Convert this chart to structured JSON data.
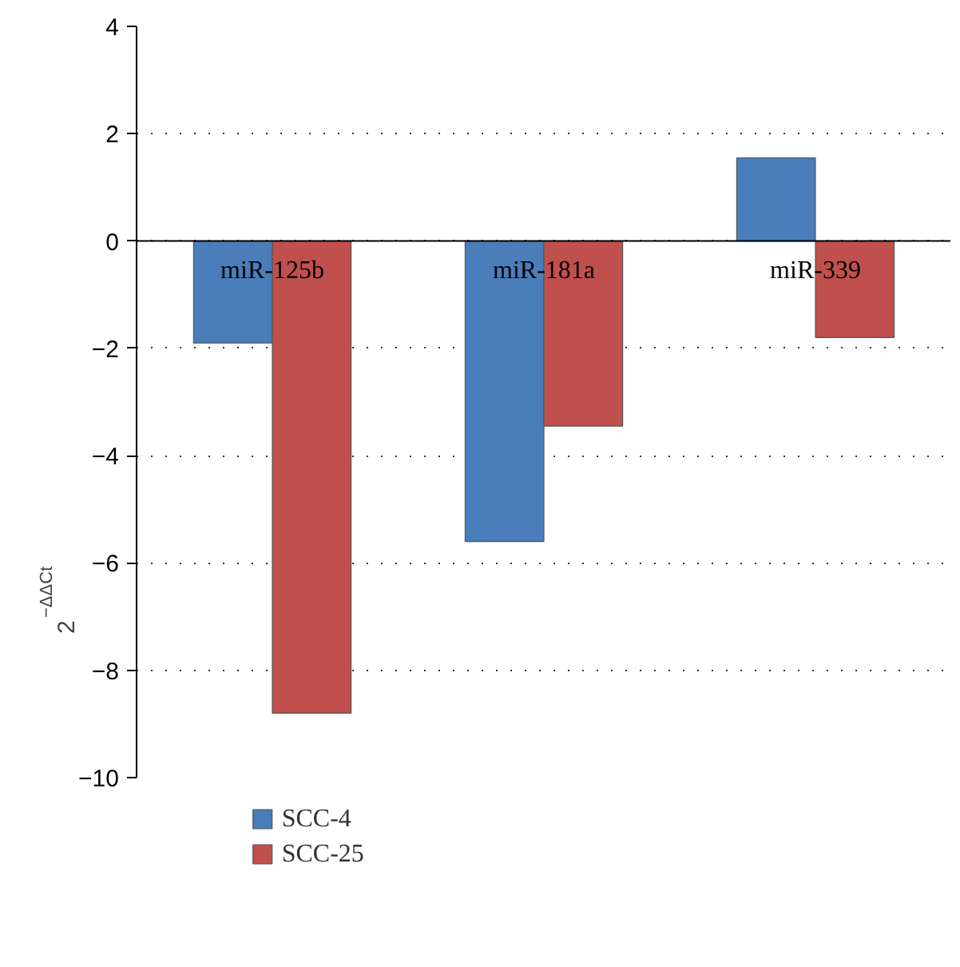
{
  "chart_data": {
    "type": "bar",
    "ylabel": "2$^{−ΔΔCt}$",
    "categories": [
      "miR-125b",
      "miR-181a",
      "miR-339"
    ],
    "series": [
      {
        "name": "SCC-4",
        "color": "#4a7ebb",
        "values": [
          -1.9,
          -5.6,
          1.55
        ]
      },
      {
        "name": "SCC-25",
        "color": "#c0504d",
        "values": [
          -8.8,
          -3.45,
          -1.8
        ]
      }
    ],
    "ylim": [
      -10,
      4
    ],
    "yticks": [
      {
        "value": -10,
        "label": "−10"
      },
      {
        "value": -8,
        "label": "−8"
      },
      {
        "value": -6,
        "label": "−6"
      },
      {
        "value": -4,
        "label": "−4"
      },
      {
        "value": -2,
        "label": "−2"
      },
      0,
      2,
      4
    ],
    "grid": "y",
    "legend": "bottom left"
  }
}
